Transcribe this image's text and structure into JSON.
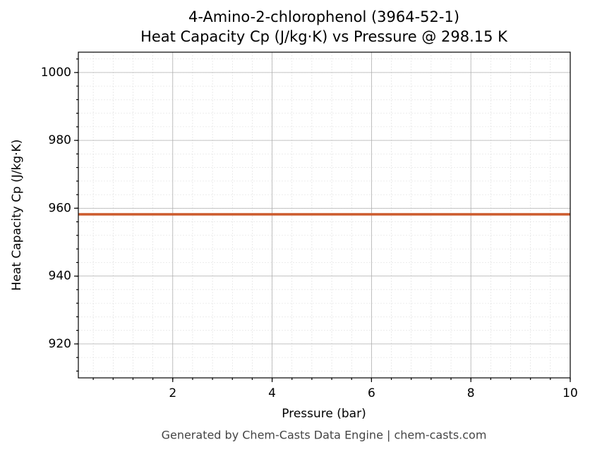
{
  "chart_data": {
    "type": "line",
    "title": "4-Amino-2-chlorophenol (3964-52-1)",
    "subtitle": "Heat Capacity Cp (J/kg·K) vs Pressure @ 298.15 K",
    "x_label": "Pressure (bar)",
    "y_label": "Heat Capacity Cp (J/kg·K)",
    "footer": "Generated by Chem-Casts Data Engine | chem-casts.com",
    "x": [
      0.1,
      10
    ],
    "series": [
      {
        "name": "Cp",
        "color": "#cc5a2c",
        "values": [
          958.2,
          958.2
        ]
      }
    ],
    "xlim": [
      0.1,
      10
    ],
    "xticks": [
      2,
      4,
      6,
      8,
      10
    ],
    "ylim": [
      910,
      1006
    ],
    "yticks": [
      920,
      940,
      960,
      980,
      1000
    ],
    "grid": true
  }
}
